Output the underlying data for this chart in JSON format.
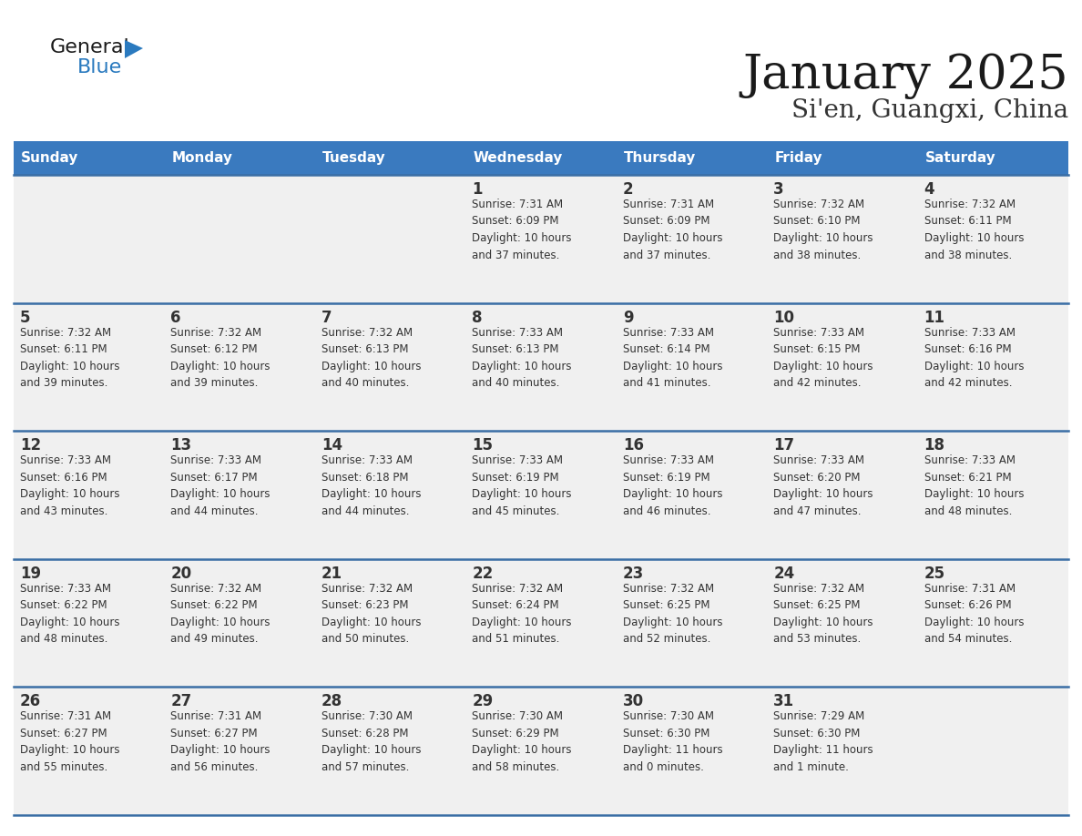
{
  "title": "January 2025",
  "subtitle": "Si'en, Guangxi, China",
  "header_color": "#3a7abf",
  "header_text_color": "#ffffff",
  "cell_bg_color": "#f0f0f0",
  "separator_color": "#3a6ea5",
  "text_color": "#333333",
  "days_of_week": [
    "Sunday",
    "Monday",
    "Tuesday",
    "Wednesday",
    "Thursday",
    "Friday",
    "Saturday"
  ],
  "calendar_data": [
    [
      {
        "day": "",
        "info": ""
      },
      {
        "day": "",
        "info": ""
      },
      {
        "day": "",
        "info": ""
      },
      {
        "day": "1",
        "info": "Sunrise: 7:31 AM\nSunset: 6:09 PM\nDaylight: 10 hours\nand 37 minutes."
      },
      {
        "day": "2",
        "info": "Sunrise: 7:31 AM\nSunset: 6:09 PM\nDaylight: 10 hours\nand 37 minutes."
      },
      {
        "day": "3",
        "info": "Sunrise: 7:32 AM\nSunset: 6:10 PM\nDaylight: 10 hours\nand 38 minutes."
      },
      {
        "day": "4",
        "info": "Sunrise: 7:32 AM\nSunset: 6:11 PM\nDaylight: 10 hours\nand 38 minutes."
      }
    ],
    [
      {
        "day": "5",
        "info": "Sunrise: 7:32 AM\nSunset: 6:11 PM\nDaylight: 10 hours\nand 39 minutes."
      },
      {
        "day": "6",
        "info": "Sunrise: 7:32 AM\nSunset: 6:12 PM\nDaylight: 10 hours\nand 39 minutes."
      },
      {
        "day": "7",
        "info": "Sunrise: 7:32 AM\nSunset: 6:13 PM\nDaylight: 10 hours\nand 40 minutes."
      },
      {
        "day": "8",
        "info": "Sunrise: 7:33 AM\nSunset: 6:13 PM\nDaylight: 10 hours\nand 40 minutes."
      },
      {
        "day": "9",
        "info": "Sunrise: 7:33 AM\nSunset: 6:14 PM\nDaylight: 10 hours\nand 41 minutes."
      },
      {
        "day": "10",
        "info": "Sunrise: 7:33 AM\nSunset: 6:15 PM\nDaylight: 10 hours\nand 42 minutes."
      },
      {
        "day": "11",
        "info": "Sunrise: 7:33 AM\nSunset: 6:16 PM\nDaylight: 10 hours\nand 42 minutes."
      }
    ],
    [
      {
        "day": "12",
        "info": "Sunrise: 7:33 AM\nSunset: 6:16 PM\nDaylight: 10 hours\nand 43 minutes."
      },
      {
        "day": "13",
        "info": "Sunrise: 7:33 AM\nSunset: 6:17 PM\nDaylight: 10 hours\nand 44 minutes."
      },
      {
        "day": "14",
        "info": "Sunrise: 7:33 AM\nSunset: 6:18 PM\nDaylight: 10 hours\nand 44 minutes."
      },
      {
        "day": "15",
        "info": "Sunrise: 7:33 AM\nSunset: 6:19 PM\nDaylight: 10 hours\nand 45 minutes."
      },
      {
        "day": "16",
        "info": "Sunrise: 7:33 AM\nSunset: 6:19 PM\nDaylight: 10 hours\nand 46 minutes."
      },
      {
        "day": "17",
        "info": "Sunrise: 7:33 AM\nSunset: 6:20 PM\nDaylight: 10 hours\nand 47 minutes."
      },
      {
        "day": "18",
        "info": "Sunrise: 7:33 AM\nSunset: 6:21 PM\nDaylight: 10 hours\nand 48 minutes."
      }
    ],
    [
      {
        "day": "19",
        "info": "Sunrise: 7:33 AM\nSunset: 6:22 PM\nDaylight: 10 hours\nand 48 minutes."
      },
      {
        "day": "20",
        "info": "Sunrise: 7:32 AM\nSunset: 6:22 PM\nDaylight: 10 hours\nand 49 minutes."
      },
      {
        "day": "21",
        "info": "Sunrise: 7:32 AM\nSunset: 6:23 PM\nDaylight: 10 hours\nand 50 minutes."
      },
      {
        "day": "22",
        "info": "Sunrise: 7:32 AM\nSunset: 6:24 PM\nDaylight: 10 hours\nand 51 minutes."
      },
      {
        "day": "23",
        "info": "Sunrise: 7:32 AM\nSunset: 6:25 PM\nDaylight: 10 hours\nand 52 minutes."
      },
      {
        "day": "24",
        "info": "Sunrise: 7:32 AM\nSunset: 6:25 PM\nDaylight: 10 hours\nand 53 minutes."
      },
      {
        "day": "25",
        "info": "Sunrise: 7:31 AM\nSunset: 6:26 PM\nDaylight: 10 hours\nand 54 minutes."
      }
    ],
    [
      {
        "day": "26",
        "info": "Sunrise: 7:31 AM\nSunset: 6:27 PM\nDaylight: 10 hours\nand 55 minutes."
      },
      {
        "day": "27",
        "info": "Sunrise: 7:31 AM\nSunset: 6:27 PM\nDaylight: 10 hours\nand 56 minutes."
      },
      {
        "day": "28",
        "info": "Sunrise: 7:30 AM\nSunset: 6:28 PM\nDaylight: 10 hours\nand 57 minutes."
      },
      {
        "day": "29",
        "info": "Sunrise: 7:30 AM\nSunset: 6:29 PM\nDaylight: 10 hours\nand 58 minutes."
      },
      {
        "day": "30",
        "info": "Sunrise: 7:30 AM\nSunset: 6:30 PM\nDaylight: 11 hours\nand 0 minutes."
      },
      {
        "day": "31",
        "info": "Sunrise: 7:29 AM\nSunset: 6:30 PM\nDaylight: 11 hours\nand 1 minute."
      },
      {
        "day": "",
        "info": ""
      }
    ]
  ],
  "logo_text_general": "General",
  "logo_text_blue": "Blue",
  "logo_color_general": "#1a1a1a",
  "logo_color_blue": "#2a7abf",
  "logo_triangle_color": "#2a7abf",
  "title_fontsize": 38,
  "subtitle_fontsize": 20,
  "header_fontsize": 11,
  "day_num_fontsize": 12,
  "info_fontsize": 8.5
}
